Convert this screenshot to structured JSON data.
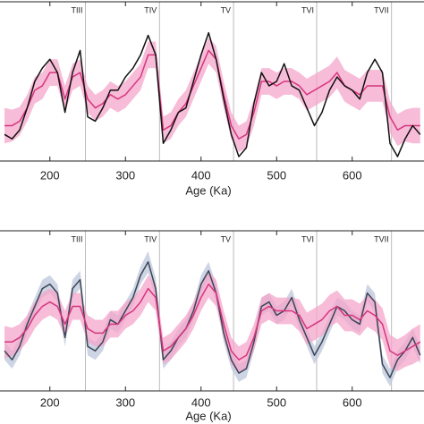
{
  "chart_data": [
    {
      "type": "line",
      "xlabel": "Age (Ka)",
      "xlim": [
        134,
        695
      ],
      "xticks": [
        200,
        300,
        400,
        500,
        600
      ],
      "ylim": [
        0,
        180
      ],
      "terminations": [
        {
          "label": "TIII",
          "x": 247
        },
        {
          "label": "TIV",
          "x": 345
        },
        {
          "label": "TV",
          "x": 443
        },
        {
          "label": "TVI",
          "x": 553
        },
        {
          "label": "TVII",
          "x": 652
        }
      ],
      "x": [
        140,
        150,
        160,
        170,
        180,
        190,
        200,
        210,
        220,
        230,
        240,
        250,
        260,
        270,
        280,
        290,
        300,
        310,
        320,
        330,
        340,
        350,
        360,
        370,
        380,
        390,
        400,
        410,
        420,
        430,
        440,
        450,
        460,
        470,
        480,
        490,
        500,
        510,
        520,
        530,
        540,
        550,
        560,
        570,
        580,
        590,
        600,
        610,
        620,
        630,
        640,
        650,
        660,
        670,
        680,
        690
      ],
      "series": [
        {
          "color": "#d6357f",
          "band_color": "#f4a6c9",
          "values": [
            40,
            40,
            45,
            60,
            80,
            85,
            100,
            100,
            70,
            95,
            100,
            70,
            60,
            65,
            75,
            70,
            75,
            85,
            95,
            120,
            120,
            35,
            40,
            55,
            65,
            85,
            105,
            125,
            115,
            75,
            40,
            25,
            30,
            55,
            90,
            90,
            85,
            90,
            90,
            85,
            75,
            80,
            85,
            90,
            100,
            85,
            80,
            75,
            85,
            85,
            85,
            50,
            35,
            40,
            40,
            40
          ],
          "error": [
            20,
            18,
            16,
            15,
            15,
            15,
            15,
            15,
            15,
            15,
            15,
            15,
            15,
            15,
            15,
            15,
            15,
            15,
            15,
            15,
            15,
            15,
            15,
            15,
            15,
            15,
            15,
            15,
            15,
            15,
            15,
            15,
            15,
            15,
            15,
            15,
            15,
            15,
            15,
            15,
            18,
            18,
            18,
            18,
            18,
            18,
            18,
            18,
            18,
            18,
            18,
            18,
            18,
            18,
            20,
            20
          ]
        },
        {
          "color": "#111111",
          "values": [
            30,
            25,
            35,
            60,
            90,
            105,
            115,
            100,
            55,
            100,
            125,
            50,
            45,
            60,
            80,
            80,
            95,
            105,
            120,
            142,
            120,
            20,
            35,
            55,
            60,
            90,
            120,
            145,
            115,
            70,
            30,
            5,
            15,
            65,
            100,
            85,
            90,
            110,
            85,
            80,
            60,
            40,
            55,
            80,
            95,
            85,
            80,
            70,
            100,
            115,
            100,
            20,
            5,
            25,
            40,
            30
          ]
        }
      ]
    },
    {
      "type": "line",
      "xlabel": "Age (Ka)",
      "xlim": [
        134,
        695
      ],
      "xticks": [
        200,
        300,
        400,
        500,
        600
      ],
      "ylim": [
        0,
        180
      ],
      "terminations": [
        {
          "label": "TIII",
          "x": 247
        },
        {
          "label": "TIV",
          "x": 345
        },
        {
          "label": "TV",
          "x": 443
        },
        {
          "label": "TVI",
          "x": 553
        },
        {
          "label": "TVII",
          "x": 652
        }
      ],
      "x": [
        140,
        150,
        160,
        170,
        180,
        190,
        200,
        210,
        220,
        230,
        240,
        250,
        260,
        270,
        280,
        290,
        300,
        310,
        320,
        330,
        340,
        350,
        360,
        370,
        380,
        390,
        400,
        410,
        420,
        430,
        440,
        450,
        460,
        470,
        480,
        490,
        500,
        510,
        520,
        530,
        540,
        550,
        560,
        570,
        580,
        590,
        600,
        610,
        620,
        630,
        640,
        650,
        660,
        670,
        680,
        690
      ],
      "series": [
        {
          "color": "#3a4656",
          "band_color": "#bcc6da",
          "values": [
            45,
            35,
            50,
            75,
            95,
            115,
            120,
            110,
            60,
            115,
            125,
            50,
            45,
            55,
            80,
            75,
            90,
            105,
            130,
            145,
            115,
            35,
            45,
            60,
            70,
            90,
            120,
            135,
            110,
            65,
            35,
            20,
            25,
            55,
            95,
            100,
            85,
            90,
            105,
            80,
            60,
            40,
            55,
            75,
            95,
            90,
            80,
            75,
            110,
            100,
            30,
            15,
            35,
            45,
            60,
            40
          ],
          "error": [
            10,
            10,
            10,
            10,
            10,
            10,
            10,
            10,
            10,
            10,
            10,
            10,
            10,
            10,
            10,
            10,
            10,
            10,
            10,
            12,
            12,
            10,
            10,
            10,
            10,
            10,
            10,
            10,
            10,
            10,
            10,
            10,
            10,
            10,
            10,
            10,
            10,
            10,
            10,
            10,
            10,
            10,
            10,
            10,
            10,
            10,
            10,
            10,
            10,
            10,
            10,
            10,
            10,
            10,
            10,
            10
          ]
        },
        {
          "color": "#d6357f",
          "band_color": "#f4a6c9",
          "values": [
            55,
            55,
            60,
            70,
            85,
            95,
            100,
            95,
            75,
            95,
            95,
            70,
            65,
            65,
            75,
            75,
            85,
            90,
            100,
            115,
            105,
            45,
            50,
            60,
            70,
            85,
            105,
            120,
            110,
            75,
            45,
            35,
            40,
            60,
            90,
            95,
            90,
            90,
            90,
            85,
            70,
            75,
            80,
            90,
            95,
            85,
            85,
            80,
            90,
            85,
            75,
            45,
            40,
            45,
            50,
            55
          ],
          "error": [
            18,
            16,
            15,
            15,
            15,
            15,
            15,
            15,
            15,
            15,
            15,
            15,
            15,
            15,
            15,
            15,
            15,
            15,
            15,
            15,
            15,
            15,
            15,
            15,
            15,
            15,
            15,
            15,
            15,
            15,
            15,
            15,
            15,
            15,
            15,
            15,
            15,
            15,
            15,
            18,
            18,
            18,
            18,
            18,
            18,
            18,
            18,
            18,
            18,
            18,
            18,
            18,
            18,
            18,
            20,
            20
          ]
        }
      ]
    }
  ]
}
